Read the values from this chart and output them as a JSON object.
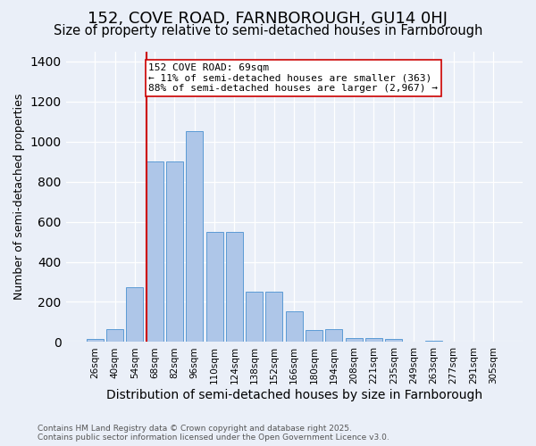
{
  "title": "152, COVE ROAD, FARNBOROUGH, GU14 0HJ",
  "subtitle": "Size of property relative to semi-detached houses in Farnborough",
  "xlabel": "Distribution of semi-detached houses by size in Farnborough",
  "ylabel": "Number of semi-detached properties",
  "categories": [
    "26sqm",
    "40sqm",
    "54sqm",
    "68sqm",
    "82sqm",
    "96sqm",
    "110sqm",
    "124sqm",
    "138sqm",
    "152sqm",
    "166sqm",
    "180sqm",
    "194sqm",
    "208sqm",
    "221sqm",
    "235sqm",
    "249sqm",
    "263sqm",
    "277sqm",
    "291sqm",
    "305sqm"
  ],
  "values": [
    15,
    65,
    275,
    900,
    900,
    1050,
    550,
    550,
    250,
    250,
    155,
    60,
    65,
    20,
    20,
    15,
    0,
    5,
    0,
    0,
    0
  ],
  "bar_color": "#aec6e8",
  "bar_edge_color": "#5b9bd5",
  "vline_color": "#cc0000",
  "vline_bin_index": 3,
  "annotation_text": "152 COVE ROAD: 69sqm\n← 11% of semi-detached houses are smaller (363)\n88% of semi-detached houses are larger (2,967) →",
  "annotation_box_facecolor": "#ffffff",
  "annotation_box_edgecolor": "#cc0000",
  "ylim": [
    0,
    1450
  ],
  "footer_line1": "Contains HM Land Registry data © Crown copyright and database right 2025.",
  "footer_line2": "Contains public sector information licensed under the Open Government Licence v3.0.",
  "bg_color": "#eaeff8",
  "title_fontsize": 13,
  "subtitle_fontsize": 10.5,
  "ylabel_fontsize": 9,
  "xlabel_fontsize": 10,
  "tick_fontsize": 7.5,
  "annotation_fontsize": 8,
  "footer_fontsize": 6.5
}
